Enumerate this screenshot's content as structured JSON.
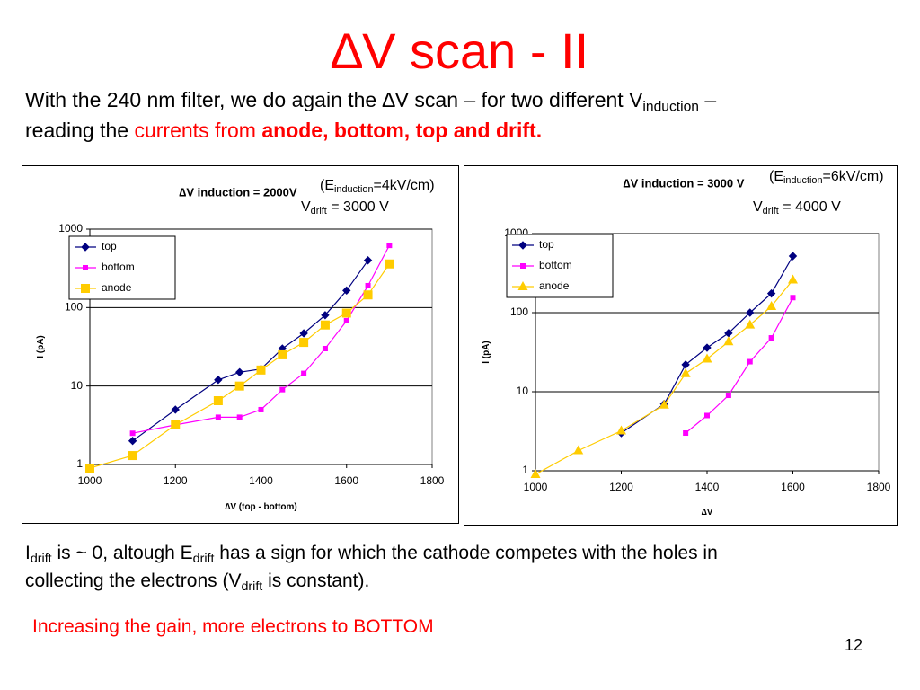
{
  "slide": {
    "title": "∆V scan - II",
    "intro": {
      "line1_a": "With the 240 nm filter, we do again the ∆V scan – for two different V",
      "line1_sub": "induction",
      "line1_b": " –",
      "line2_a": "reading the ",
      "line2_red": "currents from ",
      "line2_bold": "anode, bottom, top and drift."
    },
    "annotations": {
      "left_e_prefix": "(E",
      "left_e_sub": "induction",
      "left_e_suffix": "=4kV/cm)",
      "left_v_prefix": "V",
      "left_v_sub": "drift",
      "left_v_suffix": " = 3000 V",
      "right_e_prefix": "(E",
      "right_e_sub": "induction",
      "right_e_suffix": "=6kV/cm)",
      "right_v_prefix": "V",
      "right_v_sub": "drift",
      "right_v_suffix": " = 4000 V"
    },
    "note": {
      "p1": "I",
      "p1_sub": "drift",
      "p2": " is ~ 0, altough E",
      "p2_sub": "drift",
      "p3": " has a sign for which the cathode competes with the holes in",
      "p4": "collecting the electrons (V",
      "p4_sub": "drift",
      "p5": " is constant)."
    },
    "conclusion": "Increasing the gain, more electrons to BOTTOM",
    "page_number": "12"
  },
  "colors": {
    "top": "#000080",
    "bottom": "#ff00ff",
    "anode": "#ffcc00",
    "title": "#ff0000"
  },
  "chart_data": [
    {
      "type": "line",
      "title": "∆V induction = 2000V",
      "xlabel": "∆V (top - bottom)",
      "ylabel": "I (pA)",
      "xlim": [
        1000,
        1800
      ],
      "ylim": [
        1,
        1000
      ],
      "yscale": "log",
      "x_ticks": [
        "1000",
        "1200",
        "1400",
        "1600",
        "1800"
      ],
      "y_ticks": [
        "1",
        "10",
        "100",
        "1000"
      ],
      "grid": "horizontal",
      "legend": "top-left",
      "series": [
        {
          "name": "top",
          "marker": "diamond",
          "x": [
            1100,
            1200,
            1300,
            1350,
            1400,
            1450,
            1500,
            1550,
            1600,
            1650
          ],
          "y": [
            2.0,
            5.0,
            12,
            15,
            16.5,
            30,
            47,
            80,
            165,
            400
          ]
        },
        {
          "name": "bottom",
          "marker": "square-small",
          "x": [
            1100,
            1200,
            1300,
            1350,
            1400,
            1450,
            1500,
            1550,
            1600,
            1650,
            1700
          ],
          "y": [
            2.5,
            3.2,
            4.0,
            4.0,
            5.0,
            9.0,
            14.5,
            30,
            68,
            190,
            620
          ]
        },
        {
          "name": "anode",
          "marker": "square",
          "x": [
            1000,
            1100,
            1200,
            1300,
            1350,
            1400,
            1450,
            1500,
            1550,
            1600,
            1650,
            1700
          ],
          "y": [
            0.9,
            1.3,
            3.2,
            6.5,
            10,
            16,
            25,
            36,
            60,
            85,
            145,
            360
          ]
        }
      ]
    },
    {
      "type": "line",
      "title": "∆V induction = 3000 V",
      "xlabel": "∆V",
      "ylabel": "I (pA)",
      "xlim": [
        1000,
        1800
      ],
      "ylim": [
        1,
        1000
      ],
      "yscale": "log",
      "x_ticks": [
        "1000",
        "1200",
        "1400",
        "1600",
        "1800"
      ],
      "y_ticks": [
        "1",
        "10",
        "100",
        "1000"
      ],
      "grid": "horizontal",
      "legend": "top-left",
      "series": [
        {
          "name": "top",
          "marker": "diamond",
          "x": [
            1200,
            1300,
            1350,
            1400,
            1450,
            1500,
            1550,
            1600
          ],
          "y": [
            3.0,
            7.0,
            22,
            36,
            55,
            100,
            175,
            520
          ]
        },
        {
          "name": "bottom",
          "marker": "square-small",
          "x": [
            1350,
            1400,
            1450,
            1500,
            1550,
            1600
          ],
          "y": [
            3.0,
            5.0,
            9.0,
            24,
            48,
            155
          ]
        },
        {
          "name": "anode",
          "marker": "triangle",
          "x": [
            1000,
            1100,
            1200,
            1300,
            1350,
            1400,
            1450,
            1500,
            1550,
            1600
          ],
          "y": [
            0.9,
            1.8,
            3.2,
            6.8,
            17,
            26,
            43,
            70,
            120,
            260
          ]
        }
      ]
    }
  ]
}
